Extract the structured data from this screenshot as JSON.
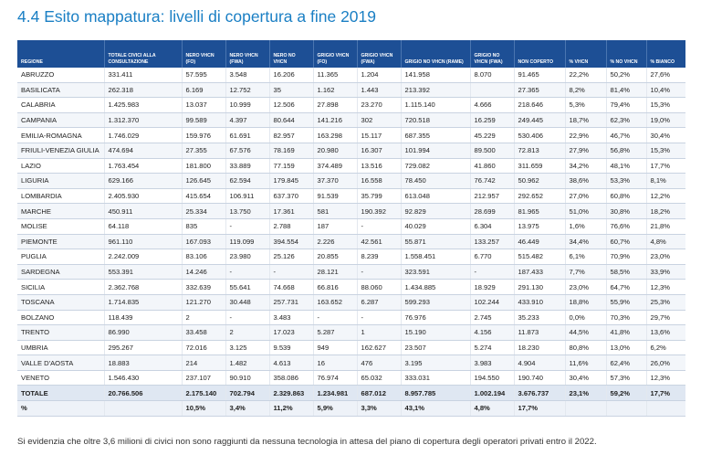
{
  "title": "4.4 Esito mappatura: livelli di copertura a fine 2019",
  "table": {
    "headers": [
      "REGIONE",
      "TOTALE CIVICI ALLA CONSULTAZIONE",
      "NERO VHCN (FO)",
      "NERO VHCN (FWA)",
      "NERO NO VHCN",
      "GRIGIO VHCN (FO)",
      "GRIGIO VHCN (FWA)",
      "GRIGIO NO VHCN (RAME)",
      "GRIGIO NO VHCN (FWA)",
      "NON COPERTO",
      "% VHCN",
      "% NO VHCN",
      "% BIANCO"
    ],
    "rows": [
      [
        "ABRUZZO",
        "331.411",
        "57.595",
        "3.548",
        "16.206",
        "11.365",
        "1.204",
        "141.958",
        "8.070",
        "91.465",
        "22,2%",
        "50,2%",
        "27,6%"
      ],
      [
        "BASILICATA",
        "262.318",
        "6.169",
        "12.752",
        "35",
        "1.162",
        "1.443",
        "213.392",
        "",
        "27.365",
        "8,2%",
        "81,4%",
        "10,4%"
      ],
      [
        "CALABRIA",
        "1.425.983",
        "13.037",
        "10.999",
        "12.506",
        "27.898",
        "23.270",
        "1.115.140",
        "4.666",
        "218.646",
        "5,3%",
        "79,4%",
        "15,3%"
      ],
      [
        "CAMPANIA",
        "1.312.370",
        "99.589",
        "4.397",
        "80.644",
        "141.216",
        "302",
        "720.518",
        "16.259",
        "249.445",
        "18,7%",
        "62,3%",
        "19,0%"
      ],
      [
        "EMILIA-ROMAGNA",
        "1.746.029",
        "159.976",
        "61.691",
        "82.957",
        "163.298",
        "15.117",
        "687.355",
        "45.229",
        "530.406",
        "22,9%",
        "46,7%",
        "30,4%"
      ],
      [
        "FRIULI-VENEZIA GIULIA",
        "474.694",
        "27.355",
        "67.576",
        "78.169",
        "20.980",
        "16.307",
        "101.994",
        "89.500",
        "72.813",
        "27,9%",
        "56,8%",
        "15,3%"
      ],
      [
        "LAZIO",
        "1.763.454",
        "181.800",
        "33.889",
        "77.159",
        "374.489",
        "13.516",
        "729.082",
        "41.860",
        "311.659",
        "34,2%",
        "48,1%",
        "17,7%"
      ],
      [
        "LIGURIA",
        "629.166",
        "126.645",
        "62.594",
        "179.845",
        "37.370",
        "16.558",
        "78.450",
        "76.742",
        "50.962",
        "38,6%",
        "53,3%",
        "8,1%"
      ],
      [
        "LOMBARDIA",
        "2.405.930",
        "415.654",
        "106.911",
        "637.370",
        "91.539",
        "35.799",
        "613.048",
        "212.957",
        "292.652",
        "27,0%",
        "60,8%",
        "12,2%"
      ],
      [
        "MARCHE",
        "450.911",
        "25.334",
        "13.750",
        "17.361",
        "581",
        "190.392",
        "92.829",
        "28.699",
        "81.965",
        "51,0%",
        "30,8%",
        "18,2%"
      ],
      [
        "MOLISE",
        "64.118",
        "835",
        "-",
        "2.788",
        "187",
        "-",
        "40.029",
        "6.304",
        "13.975",
        "1,6%",
        "76,6%",
        "21,8%"
      ],
      [
        "PIEMONTE",
        "961.110",
        "167.093",
        "119.099",
        "394.554",
        "2.226",
        "42.561",
        "55.871",
        "133.257",
        "46.449",
        "34,4%",
        "60,7%",
        "4,8%"
      ],
      [
        "PUGLIA",
        "2.242.009",
        "83.106",
        "23.980",
        "25.126",
        "20.855",
        "8.239",
        "1.558.451",
        "6.770",
        "515.482",
        "6,1%",
        "70,9%",
        "23,0%"
      ],
      [
        "SARDEGNA",
        "553.391",
        "14.246",
        "-",
        "-",
        "28.121",
        "-",
        "323.591",
        "-",
        "187.433",
        "7,7%",
        "58,5%",
        "33,9%"
      ],
      [
        "SICILIA",
        "2.362.768",
        "332.639",
        "55.641",
        "74.668",
        "66.816",
        "88.060",
        "1.434.885",
        "18.929",
        "291.130",
        "23,0%",
        "64,7%",
        "12,3%"
      ],
      [
        "TOSCANA",
        "1.714.835",
        "121.270",
        "30.448",
        "257.731",
        "163.652",
        "6.287",
        "599.293",
        "102.244",
        "433.910",
        "18,8%",
        "55,9%",
        "25,3%"
      ],
      [
        "BOLZANO",
        "118.439",
        "2",
        "-",
        "3.483",
        "-",
        "-",
        "76.976",
        "2.745",
        "35.233",
        "0,0%",
        "70,3%",
        "29,7%"
      ],
      [
        "TRENTO",
        "86.990",
        "33.458",
        "2",
        "17.023",
        "5.287",
        "1",
        "15.190",
        "4.156",
        "11.873",
        "44,5%",
        "41,8%",
        "13,6%"
      ],
      [
        "UMBRIA",
        "295.267",
        "72.016",
        "3.125",
        "9.539",
        "949",
        "162.627",
        "23.507",
        "5.274",
        "18.230",
        "80,8%",
        "13,0%",
        "6,2%"
      ],
      [
        "VALLE D'AOSTA",
        "18.883",
        "214",
        "1.482",
        "4.613",
        "16",
        "476",
        "3.195",
        "3.983",
        "4.904",
        "11,6%",
        "62,4%",
        "26,0%"
      ],
      [
        "VENETO",
        "1.546.430",
        "237.107",
        "90.910",
        "358.086",
        "76.974",
        "65.032",
        "333.031",
        "194.550",
        "190.740",
        "30,4%",
        "57,3%",
        "12,3%"
      ]
    ],
    "total_row": [
      "TOTALE",
      "20.766.506",
      "2.175.140",
      "702.794",
      "2.329.863",
      "1.234.981",
      "687.012",
      "8.957.785",
      "1.002.194",
      "3.676.737",
      "23,1%",
      "59,2%",
      "17,7%"
    ],
    "pct_row": [
      "%",
      "",
      "10,5%",
      "3,4%",
      "11,2%",
      "5,9%",
      "3,3%",
      "43,1%",
      "4,8%",
      "17,7%",
      "",
      "",
      ""
    ]
  },
  "footnote": "Si evidenzia che oltre 3,6 milioni di civici non sono raggiunti da nessuna tecnologia in attesa del piano di copertura degli operatori privati entro il 2022."
}
